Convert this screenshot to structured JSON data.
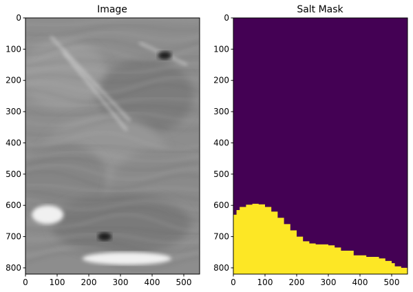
{
  "chart_data": [
    {
      "type": "heatmap",
      "title": "Image",
      "colormap": "gray",
      "xlim": [
        0,
        550
      ],
      "ylim": [
        820,
        0
      ],
      "xticks": [
        0,
        100,
        200,
        300,
        400,
        500
      ],
      "yticks": [
        0,
        100,
        200,
        300,
        400,
        500,
        600,
        700,
        800
      ],
      "features": [
        {
          "kind": "bright-streak",
          "x": [
            80,
            330
          ],
          "y": [
            60,
            330
          ]
        },
        {
          "kind": "bright-streak",
          "x": [
            120,
            320
          ],
          "y": [
            110,
            360
          ]
        },
        {
          "kind": "bright-streak",
          "x": [
            360,
            510
          ],
          "y": [
            80,
            150
          ]
        },
        {
          "kind": "dark-blob",
          "x": 440,
          "y": 120
        },
        {
          "kind": "bright-band",
          "x": [
            20,
            120
          ],
          "y": [
            600,
            660
          ]
        },
        {
          "kind": "dark-blob",
          "x": 250,
          "y": 700
        },
        {
          "kind": "bright-band",
          "x": [
            180,
            460
          ],
          "y": [
            750,
            790
          ]
        }
      ]
    },
    {
      "type": "heatmap",
      "title": "Salt Mask",
      "colormap": "viridis",
      "colors": {
        "background": "#440154",
        "salt": "#fde725"
      },
      "xlim": [
        0,
        550
      ],
      "ylim": [
        820,
        0
      ],
      "xticks": [
        0,
        100,
        200,
        300,
        400,
        500
      ],
      "yticks": [
        0,
        100,
        200,
        300,
        400,
        500,
        600,
        700,
        800
      ],
      "salt_boundary": {
        "x": [
          0,
          10,
          20,
          40,
          60,
          80,
          100,
          120,
          140,
          160,
          180,
          200,
          220,
          240,
          260,
          300,
          320,
          340,
          380,
          420,
          440,
          460,
          480,
          500,
          510,
          530,
          550
        ],
        "y": [
          630,
          615,
          605,
          598,
          595,
          597,
          605,
          620,
          640,
          660,
          680,
          700,
          715,
          722,
          725,
          728,
          735,
          745,
          760,
          765,
          765,
          770,
          778,
          785,
          795,
          800,
          805
        ]
      }
    }
  ]
}
